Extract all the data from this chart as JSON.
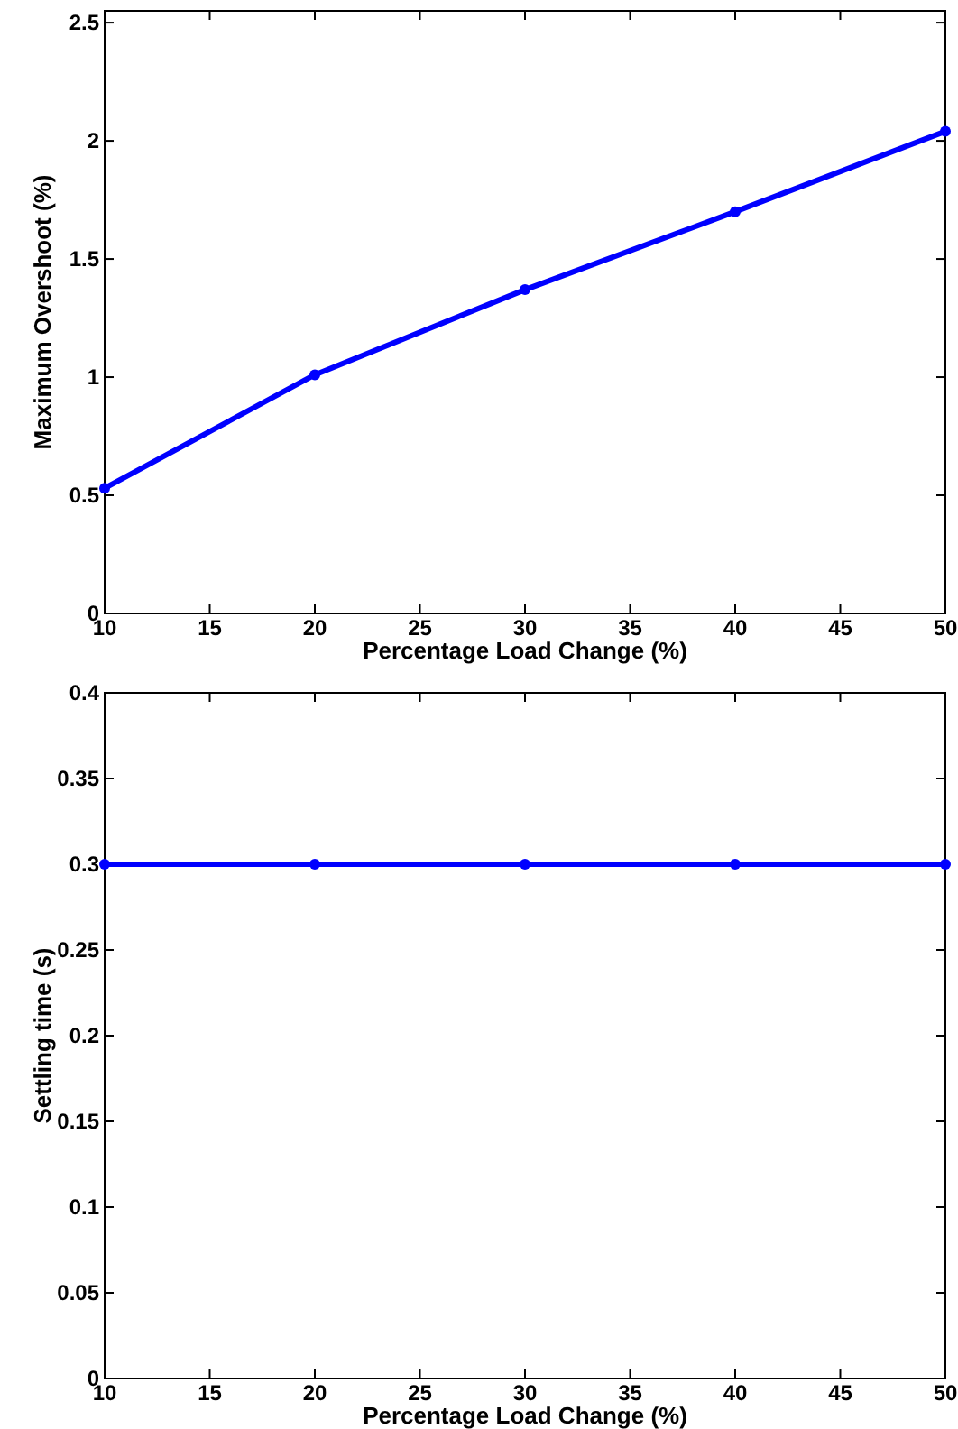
{
  "chart_data": [
    {
      "type": "line",
      "xlabel": "Percentage Load Change (%)",
      "ylabel": "Maximum Overshoot (%)",
      "x": [
        10,
        20,
        30,
        40,
        50
      ],
      "series": [
        {
          "color": "#0000ff",
          "values": [
            0.53,
            1.01,
            1.37,
            1.7,
            2.04
          ]
        }
      ],
      "xlim": [
        10,
        50
      ],
      "xticks": [
        10,
        15,
        20,
        25,
        30,
        35,
        40,
        45,
        50
      ],
      "ylim": [
        0,
        2.55
      ],
      "yticks": [
        0,
        0.5,
        1,
        1.5,
        2,
        2.5
      ],
      "marker": "circle",
      "line_style": "solid",
      "grid": false
    },
    {
      "type": "line",
      "xlabel": "Percentage Load Change (%)",
      "ylabel": "Settling time (s)",
      "x": [
        10,
        20,
        30,
        40,
        50
      ],
      "series": [
        {
          "color": "#0000ff",
          "values": [
            0.3,
            0.3,
            0.3,
            0.3,
            0.3
          ]
        }
      ],
      "xlim": [
        10,
        50
      ],
      "xticks": [
        10,
        15,
        20,
        25,
        30,
        35,
        40,
        45,
        50
      ],
      "ylim": [
        0,
        0.4
      ],
      "yticks": [
        0,
        0.05,
        0.1,
        0.15,
        0.2,
        0.25,
        0.3,
        0.35,
        0.4
      ],
      "marker": "circle",
      "line_style": "solid",
      "grid": false
    }
  ]
}
